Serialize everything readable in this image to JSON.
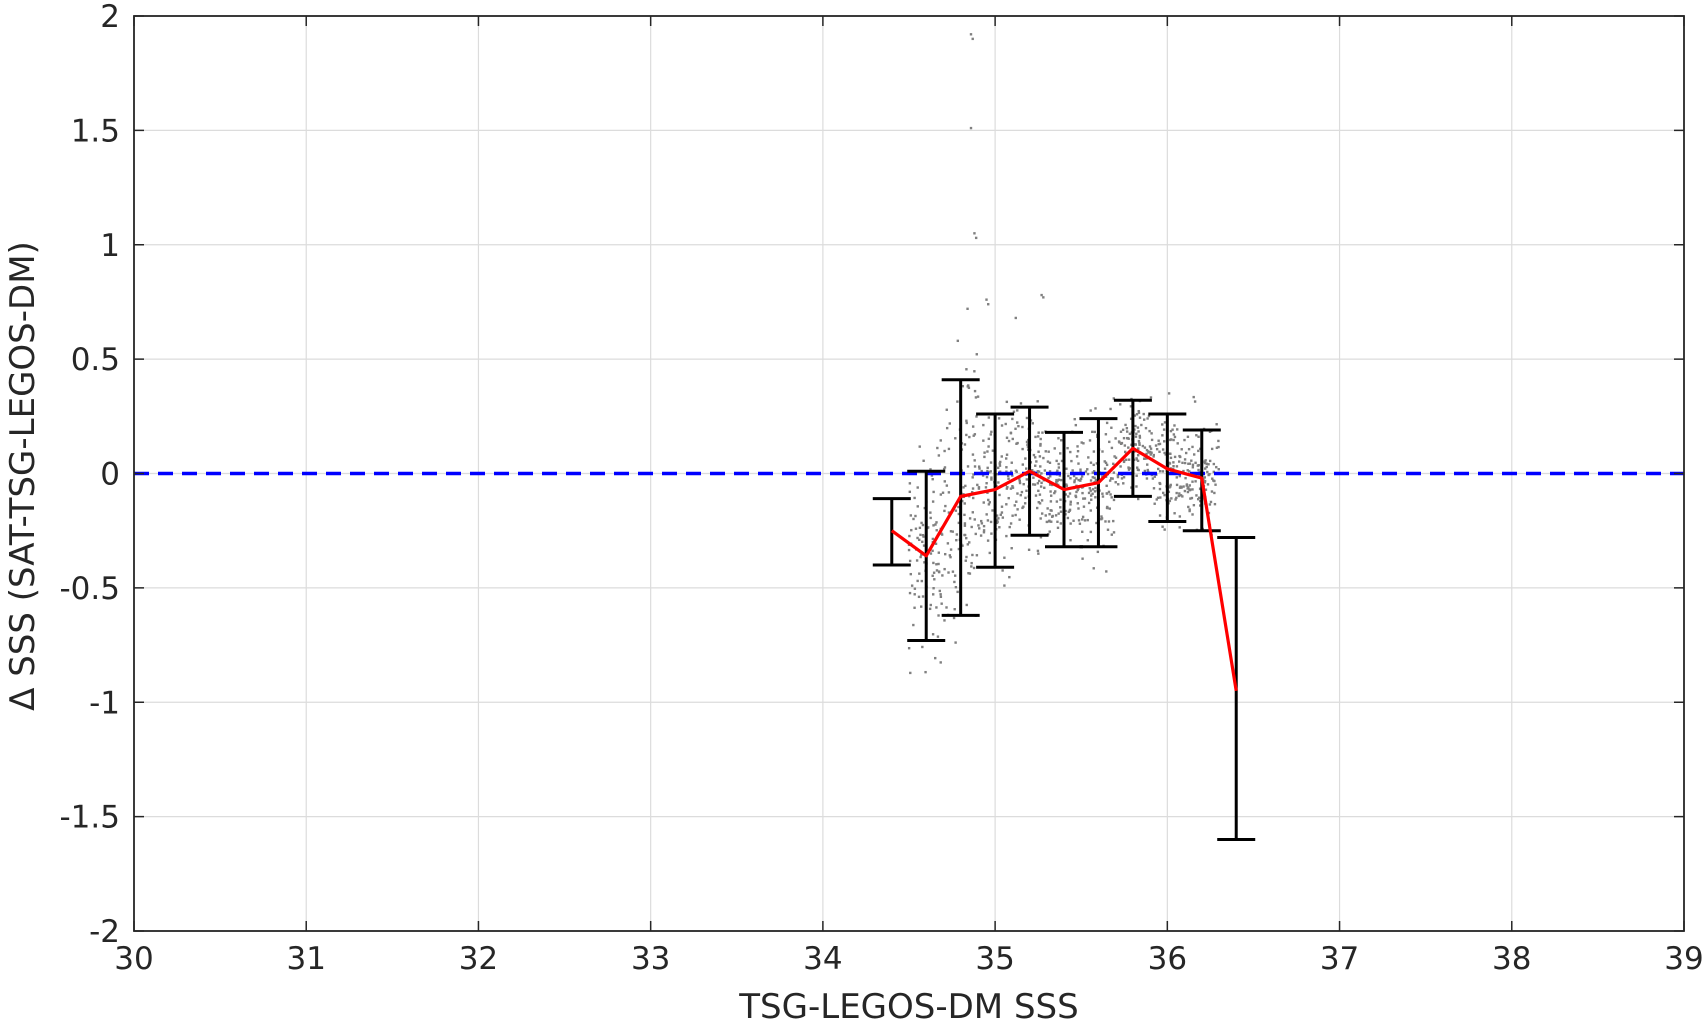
{
  "chart_data": {
    "type": "scatter",
    "xlabel": "TSG-LEGOS-DM SSS",
    "ylabel": "Δ SSS (SAT-TSG-LEGOS-DM)",
    "xlim": [
      30,
      39
    ],
    "ylim": [
      -2,
      2
    ],
    "x_ticks": [
      "30",
      "31",
      "32",
      "33",
      "34",
      "35",
      "36",
      "37",
      "38",
      "39"
    ],
    "y_ticks": [
      "2",
      "1.5",
      "1",
      "0.5",
      "0",
      "-0.5",
      "-1",
      "-1.5",
      "-2"
    ],
    "grid": true,
    "series": [
      {
        "style": "binned-mean-line",
        "color": "#ff0000",
        "x": [
          34.4,
          34.6,
          34.8,
          35.0,
          35.2,
          35.4,
          35.6,
          35.8,
          36.0,
          36.2,
          36.4
        ],
        "y": [
          -0.25,
          -0.36,
          -0.1,
          -0.07,
          0.01,
          -0.07,
          -0.04,
          0.11,
          0.02,
          -0.02,
          -0.95
        ]
      },
      {
        "style": "error-bars",
        "color": "#000000",
        "x": [
          34.4,
          34.6,
          34.8,
          35.0,
          35.2,
          35.4,
          35.6,
          35.8,
          36.0,
          36.2,
          36.4
        ],
        "upper": [
          -0.11,
          0.01,
          0.41,
          0.26,
          0.29,
          0.18,
          0.24,
          0.32,
          0.26,
          0.19,
          -0.28
        ],
        "lower": [
          -0.4,
          -0.73,
          -0.62,
          -0.41,
          -0.27,
          -0.32,
          -0.32,
          -0.1,
          -0.21,
          -0.25,
          -1.6
        ]
      },
      {
        "style": "reference-line-dashed",
        "color": "#0000ff",
        "y": 0
      },
      {
        "style": "scatter-points",
        "color": "#808080",
        "x_range": [
          34.4,
          36.3
        ],
        "y_range": [
          -0.9,
          1.92
        ],
        "outliers": [
          {
            "x": 34.86,
            "y": 1.92
          },
          {
            "x": 34.87,
            "y": 1.9
          },
          {
            "x": 34.86,
            "y": 1.51
          },
          {
            "x": 34.88,
            "y": 1.05
          },
          {
            "x": 34.89,
            "y": 1.03
          },
          {
            "x": 34.95,
            "y": 0.76
          },
          {
            "x": 34.96,
            "y": 0.74
          },
          {
            "x": 35.27,
            "y": 0.78
          },
          {
            "x": 35.28,
            "y": 0.77
          },
          {
            "x": 34.84,
            "y": 0.72
          },
          {
            "x": 35.12,
            "y": 0.68
          }
        ]
      }
    ]
  }
}
